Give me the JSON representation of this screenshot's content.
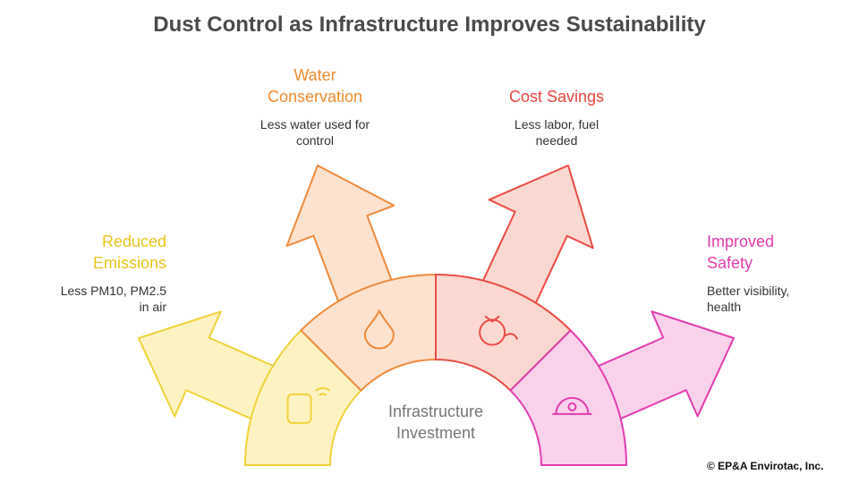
{
  "title": "Dust Control as Infrastructure Improves Sustainability",
  "center_label": "Infrastructure Investment",
  "branches": [
    {
      "label": "Reduced Emissions",
      "description": "Less PM10, PM2.5 in air"
    },
    {
      "label": "Water Conservation",
      "description": "Less water used for control"
    },
    {
      "label": "Cost Savings",
      "description": "Less labor, fuel needed"
    },
    {
      "label": "Improved Safety",
      "description": "Better visibility, health"
    }
  ],
  "copyright": "© EP&A Envirotac, Inc."
}
